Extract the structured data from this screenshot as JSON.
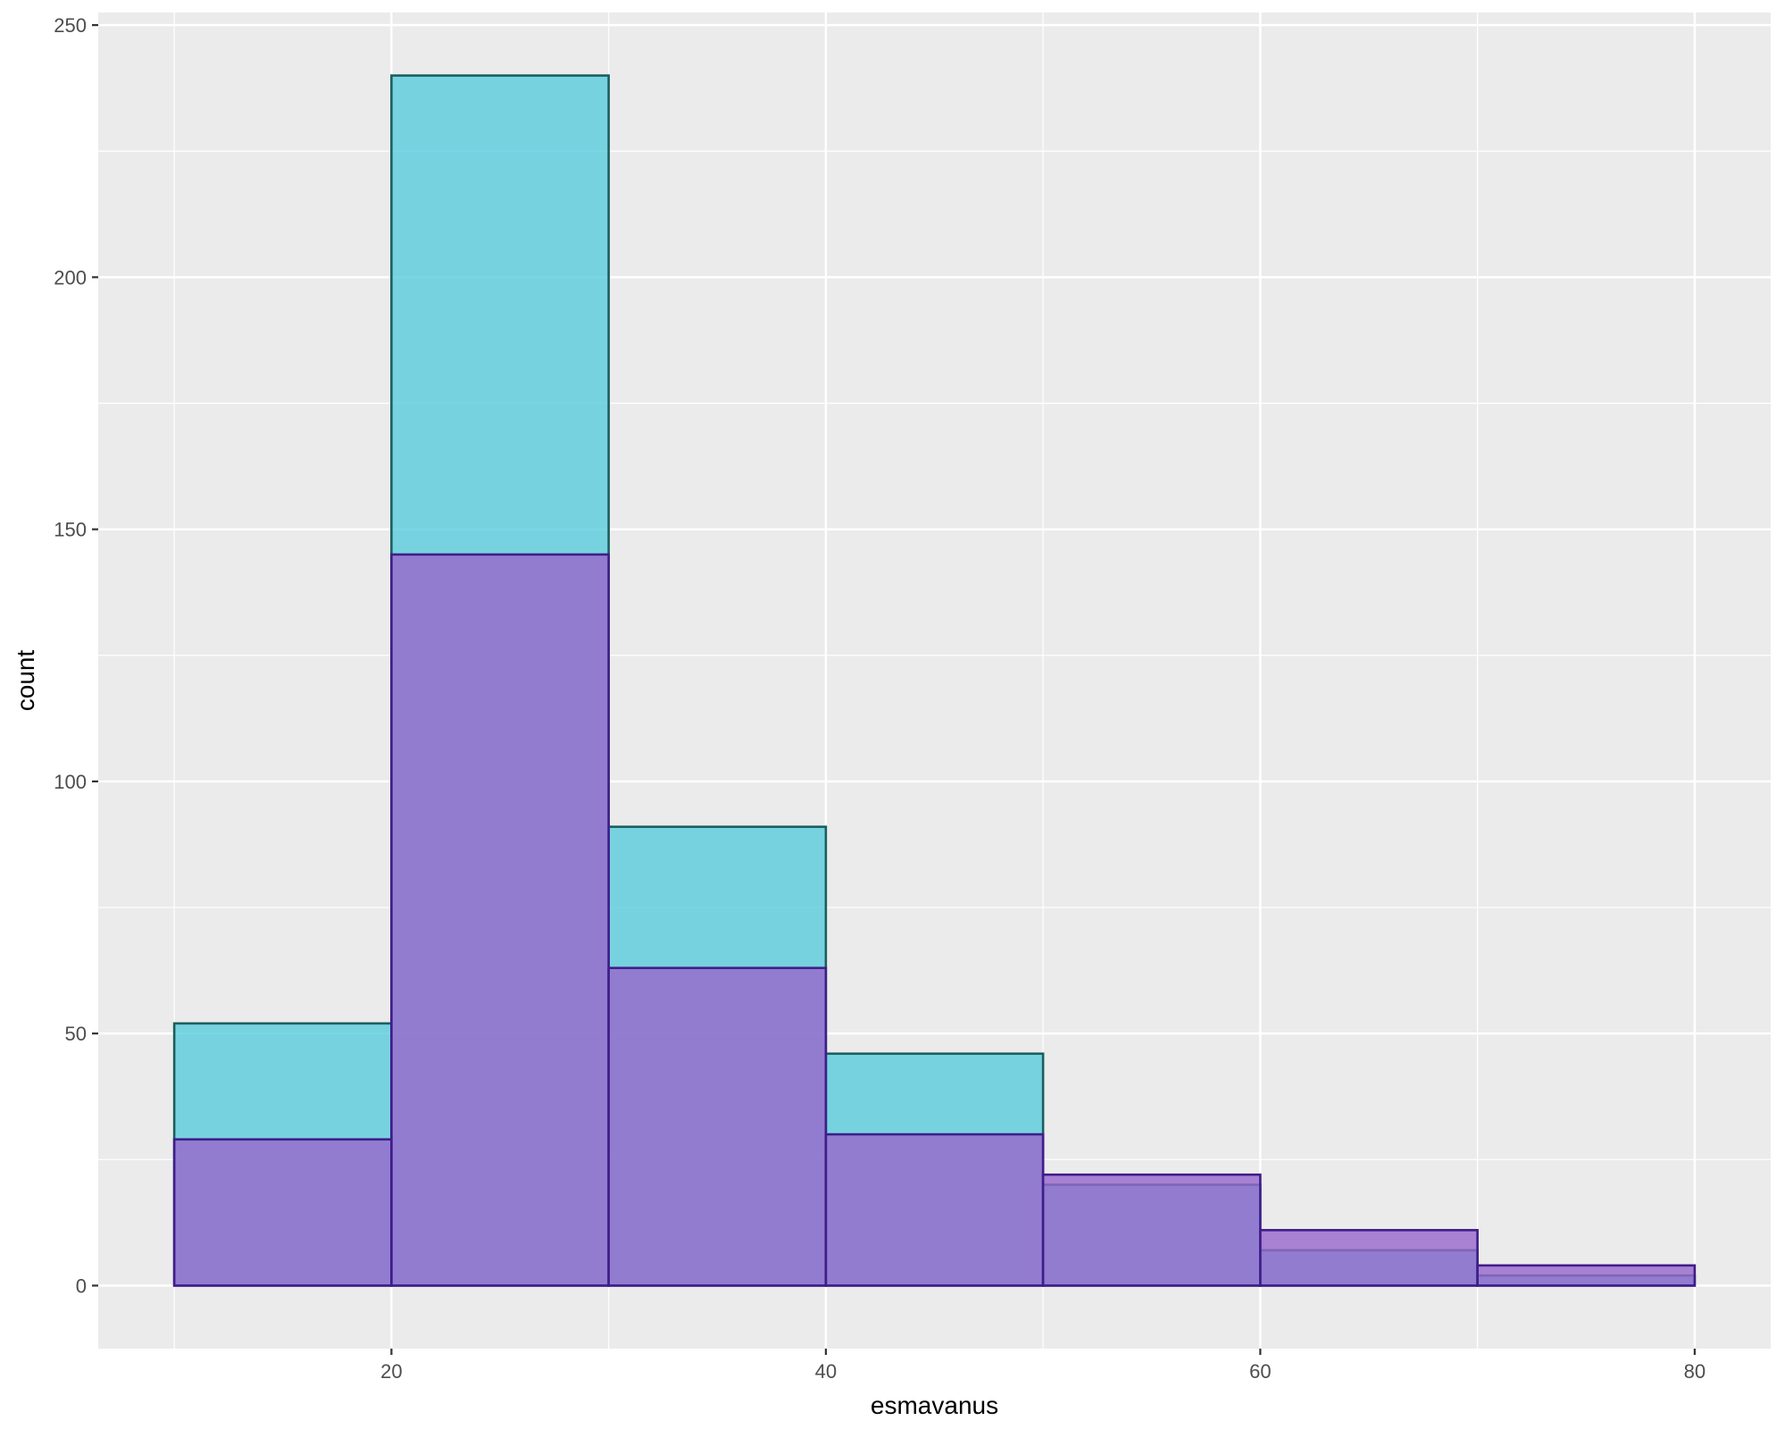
{
  "chart_data": {
    "type": "bar",
    "subtype": "overlaid-histogram",
    "xlabel": "esmavanus",
    "ylabel": "count",
    "xlim": [
      6.5,
      83.5
    ],
    "ylim": [
      -12.5,
      252.5
    ],
    "x_ticks": [
      20,
      40,
      60,
      80
    ],
    "x_minor_ticks": [
      10,
      30,
      50,
      70
    ],
    "y_ticks": [
      0,
      50,
      100,
      150,
      200,
      250
    ],
    "y_minor_ticks": [
      25,
      75,
      125,
      175,
      225
    ],
    "grid": true,
    "legend": "none",
    "bin_edges": [
      10,
      20,
      30,
      40,
      50,
      60,
      70,
      80
    ],
    "series": [
      {
        "fill": "#5ACCDD",
        "stroke": "#1B5E5E",
        "values": [
          52,
          240,
          91,
          46,
          20,
          7,
          2
        ]
      },
      {
        "fill": "#9966CC",
        "stroke": "#3F1D8A",
        "values": [
          29,
          145,
          63,
          30,
          22,
          11,
          4
        ]
      }
    ]
  },
  "colors": {
    "panel_background": "#EBEBEB",
    "grid_major": "#FFFFFF",
    "tick_text": "#4D4D4D",
    "axis_title": "#000000"
  }
}
